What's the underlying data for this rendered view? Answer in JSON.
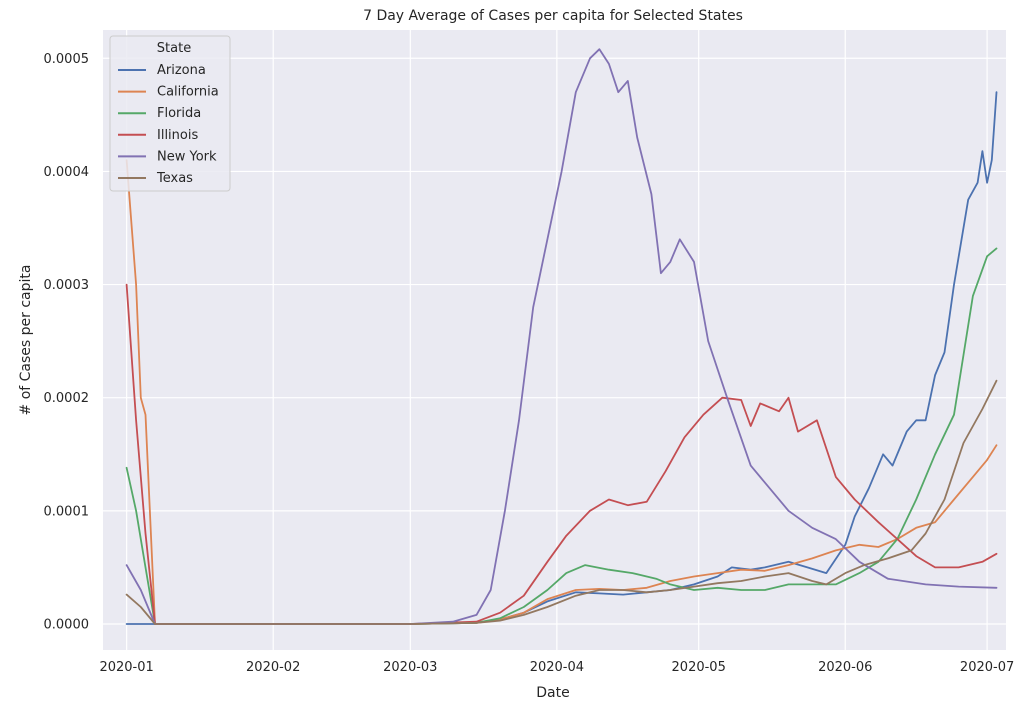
{
  "chart_data": {
    "type": "line",
    "title": "7 Day Average of Cases per capita for Selected States",
    "xlabel": "Date",
    "ylabel": "# of Cases per capita",
    "xlim": [
      "2019-12-27",
      "2020-07-05"
    ],
    "ylim": [
      -2.3e-05,
      0.000525
    ],
    "grid": true,
    "legend": {
      "title": "State",
      "position": "top-left"
    },
    "x_ticks": [
      "2020-01",
      "2020-02",
      "2020-03",
      "2020-04",
      "2020-05",
      "2020-06",
      "2020-07"
    ],
    "y_ticks": [
      0.0,
      0.0001,
      0.0002,
      0.0003,
      0.0004,
      0.0005
    ],
    "y_tick_labels": [
      "0.0000",
      "0.0001",
      "0.0002",
      "0.0003",
      "0.0004",
      "0.0005"
    ],
    "series": [
      {
        "name": "Arizona",
        "color": "#4c72b0",
        "points": [
          [
            "2020-01-01",
            0.0
          ],
          [
            "2020-01-07",
            0.0
          ],
          [
            "2020-03-01",
            0.0
          ],
          [
            "2020-03-15",
            1e-06
          ],
          [
            "2020-03-20",
            4e-06
          ],
          [
            "2020-03-25",
            1e-05
          ],
          [
            "2020-03-30",
            2e-05
          ],
          [
            "2020-04-05",
            2.8e-05
          ],
          [
            "2020-04-10",
            2.7e-05
          ],
          [
            "2020-04-15",
            2.6e-05
          ],
          [
            "2020-04-20",
            2.8e-05
          ],
          [
            "2020-04-25",
            3e-05
          ],
          [
            "2020-04-30",
            3.5e-05
          ],
          [
            "2020-05-05",
            4.2e-05
          ],
          [
            "2020-05-08",
            5e-05
          ],
          [
            "2020-05-12",
            4.8e-05
          ],
          [
            "2020-05-15",
            5e-05
          ],
          [
            "2020-05-20",
            5.5e-05
          ],
          [
            "2020-05-24",
            5e-05
          ],
          [
            "2020-05-28",
            4.5e-05
          ],
          [
            "2020-06-01",
            7e-05
          ],
          [
            "2020-06-03",
            9.5e-05
          ],
          [
            "2020-06-06",
            0.00012
          ],
          [
            "2020-06-09",
            0.00015
          ],
          [
            "2020-06-11",
            0.00014
          ],
          [
            "2020-06-14",
            0.00017
          ],
          [
            "2020-06-16",
            0.00018
          ],
          [
            "2020-06-18",
            0.00018
          ],
          [
            "2020-06-20",
            0.00022
          ],
          [
            "2020-06-22",
            0.00024
          ],
          [
            "2020-06-24",
            0.0003
          ],
          [
            "2020-06-27",
            0.000375
          ],
          [
            "2020-06-29",
            0.00039
          ],
          [
            "2020-06-30",
            0.000418
          ],
          [
            "2020-07-01",
            0.00039
          ],
          [
            "2020-07-02",
            0.00041
          ],
          [
            "2020-07-03",
            0.00047
          ]
        ]
      },
      {
        "name": "California",
        "color": "#dd8452",
        "points": [
          [
            "2020-01-01",
            0.00041
          ],
          [
            "2020-01-03",
            0.0003
          ],
          [
            "2020-01-04",
            0.0002
          ],
          [
            "2020-01-05",
            0.000185
          ],
          [
            "2020-01-07",
            0.0
          ],
          [
            "2020-03-01",
            0.0
          ],
          [
            "2020-03-15",
            1e-06
          ],
          [
            "2020-03-20",
            4e-06
          ],
          [
            "2020-03-25",
            1e-05
          ],
          [
            "2020-03-30",
            2.2e-05
          ],
          [
            "2020-04-05",
            3e-05
          ],
          [
            "2020-04-10",
            3.1e-05
          ],
          [
            "2020-04-15",
            3e-05
          ],
          [
            "2020-04-20",
            3.2e-05
          ],
          [
            "2020-04-25",
            3.8e-05
          ],
          [
            "2020-04-30",
            4.2e-05
          ],
          [
            "2020-05-05",
            4.5e-05
          ],
          [
            "2020-05-10",
            4.8e-05
          ],
          [
            "2020-05-15",
            4.7e-05
          ],
          [
            "2020-05-20",
            5.2e-05
          ],
          [
            "2020-05-25",
            5.8e-05
          ],
          [
            "2020-05-30",
            6.5e-05
          ],
          [
            "2020-06-04",
            7e-05
          ],
          [
            "2020-06-08",
            6.8e-05
          ],
          [
            "2020-06-12",
            7.5e-05
          ],
          [
            "2020-06-16",
            8.5e-05
          ],
          [
            "2020-06-20",
            9e-05
          ],
          [
            "2020-06-24",
            0.00011
          ],
          [
            "2020-06-28",
            0.00013
          ],
          [
            "2020-07-01",
            0.000145
          ],
          [
            "2020-07-03",
            0.000158
          ]
        ]
      },
      {
        "name": "Florida",
        "color": "#55a868",
        "points": [
          [
            "2020-01-01",
            0.000138
          ],
          [
            "2020-01-03",
            0.0001
          ],
          [
            "2020-01-05",
            5e-05
          ],
          [
            "2020-01-07",
            0.0
          ],
          [
            "2020-03-01",
            0.0
          ],
          [
            "2020-03-15",
            1e-06
          ],
          [
            "2020-03-20",
            5e-06
          ],
          [
            "2020-03-25",
            1.5e-05
          ],
          [
            "2020-03-30",
            3e-05
          ],
          [
            "2020-04-03",
            4.5e-05
          ],
          [
            "2020-04-07",
            5.2e-05
          ],
          [
            "2020-04-12",
            4.8e-05
          ],
          [
            "2020-04-17",
            4.5e-05
          ],
          [
            "2020-04-22",
            4e-05
          ],
          [
            "2020-04-25",
            3.5e-05
          ],
          [
            "2020-04-30",
            3e-05
          ],
          [
            "2020-05-05",
            3.2e-05
          ],
          [
            "2020-05-10",
            3e-05
          ],
          [
            "2020-05-15",
            3e-05
          ],
          [
            "2020-05-20",
            3.5e-05
          ],
          [
            "2020-05-25",
            3.5e-05
          ],
          [
            "2020-05-30",
            3.5e-05
          ],
          [
            "2020-06-04",
            4.5e-05
          ],
          [
            "2020-06-08",
            5.5e-05
          ],
          [
            "2020-06-12",
            7.5e-05
          ],
          [
            "2020-06-16",
            0.00011
          ],
          [
            "2020-06-20",
            0.00015
          ],
          [
            "2020-06-24",
            0.000185
          ],
          [
            "2020-06-28",
            0.00029
          ],
          [
            "2020-07-01",
            0.000325
          ],
          [
            "2020-07-03",
            0.000332
          ]
        ]
      },
      {
        "name": "Illinois",
        "color": "#c44e52",
        "points": [
          [
            "2020-01-01",
            0.0003
          ],
          [
            "2020-01-03",
            0.00018
          ],
          [
            "2020-01-05",
            8e-05
          ],
          [
            "2020-01-07",
            0.0
          ],
          [
            "2020-03-01",
            0.0
          ],
          [
            "2020-03-15",
            2e-06
          ],
          [
            "2020-03-20",
            1e-05
          ],
          [
            "2020-03-25",
            2.5e-05
          ],
          [
            "2020-03-30",
            5.5e-05
          ],
          [
            "2020-04-03",
            7.8e-05
          ],
          [
            "2020-04-08",
            0.0001
          ],
          [
            "2020-04-12",
            0.00011
          ],
          [
            "2020-04-16",
            0.000105
          ],
          [
            "2020-04-20",
            0.000108
          ],
          [
            "2020-04-24",
            0.000135
          ],
          [
            "2020-04-28",
            0.000165
          ],
          [
            "2020-05-02",
            0.000185
          ],
          [
            "2020-05-06",
            0.0002
          ],
          [
            "2020-05-10",
            0.000198
          ],
          [
            "2020-05-12",
            0.000175
          ],
          [
            "2020-05-14",
            0.000195
          ],
          [
            "2020-05-18",
            0.000188
          ],
          [
            "2020-05-20",
            0.0002
          ],
          [
            "2020-05-22",
            0.00017
          ],
          [
            "2020-05-26",
            0.00018
          ],
          [
            "2020-05-30",
            0.00013
          ],
          [
            "2020-06-03",
            0.00011
          ],
          [
            "2020-06-08",
            9e-05
          ],
          [
            "2020-06-12",
            7.5e-05
          ],
          [
            "2020-06-16",
            6e-05
          ],
          [
            "2020-06-20",
            5e-05
          ],
          [
            "2020-06-25",
            5e-05
          ],
          [
            "2020-06-30",
            5.5e-05
          ],
          [
            "2020-07-03",
            6.2e-05
          ]
        ]
      },
      {
        "name": "New York",
        "color": "#8172b3",
        "points": [
          [
            "2020-01-01",
            5.2e-05
          ],
          [
            "2020-01-04",
            3e-05
          ],
          [
            "2020-01-07",
            0.0
          ],
          [
            "2020-03-01",
            0.0
          ],
          [
            "2020-03-10",
            2e-06
          ],
          [
            "2020-03-15",
            8e-06
          ],
          [
            "2020-03-18",
            3e-05
          ],
          [
            "2020-03-21",
            0.0001
          ],
          [
            "2020-03-24",
            0.00018
          ],
          [
            "2020-03-27",
            0.00028
          ],
          [
            "2020-03-30",
            0.00034
          ],
          [
            "2020-04-02",
            0.0004
          ],
          [
            "2020-04-05",
            0.00047
          ],
          [
            "2020-04-08",
            0.0005
          ],
          [
            "2020-04-10",
            0.000508
          ],
          [
            "2020-04-12",
            0.000495
          ],
          [
            "2020-04-14",
            0.00047
          ],
          [
            "2020-04-16",
            0.00048
          ],
          [
            "2020-04-18",
            0.00043
          ],
          [
            "2020-04-21",
            0.00038
          ],
          [
            "2020-04-23",
            0.00031
          ],
          [
            "2020-04-25",
            0.00032
          ],
          [
            "2020-04-27",
            0.00034
          ],
          [
            "2020-04-30",
            0.00032
          ],
          [
            "2020-05-03",
            0.00025
          ],
          [
            "2020-05-07",
            0.0002
          ],
          [
            "2020-05-12",
            0.00014
          ],
          [
            "2020-05-16",
            0.00012
          ],
          [
            "2020-05-20",
            0.0001
          ],
          [
            "2020-05-25",
            8.5e-05
          ],
          [
            "2020-05-30",
            7.5e-05
          ],
          [
            "2020-06-04",
            5.5e-05
          ],
          [
            "2020-06-10",
            4e-05
          ],
          [
            "2020-06-18",
            3.5e-05
          ],
          [
            "2020-06-25",
            3.3e-05
          ],
          [
            "2020-07-03",
            3.2e-05
          ]
        ]
      },
      {
        "name": "Texas",
        "color": "#937860",
        "points": [
          [
            "2020-01-01",
            2.6e-05
          ],
          [
            "2020-01-04",
            1.5e-05
          ],
          [
            "2020-01-07",
            0.0
          ],
          [
            "2020-03-01",
            0.0
          ],
          [
            "2020-03-15",
            1e-06
          ],
          [
            "2020-03-20",
            3e-06
          ],
          [
            "2020-03-25",
            8e-06
          ],
          [
            "2020-03-30",
            1.5e-05
          ],
          [
            "2020-04-05",
            2.5e-05
          ],
          [
            "2020-04-10",
            3e-05
          ],
          [
            "2020-04-15",
            3e-05
          ],
          [
            "2020-04-20",
            2.8e-05
          ],
          [
            "2020-04-25",
            3e-05
          ],
          [
            "2020-04-30",
            3.3e-05
          ],
          [
            "2020-05-05",
            3.6e-05
          ],
          [
            "2020-05-10",
            3.8e-05
          ],
          [
            "2020-05-15",
            4.2e-05
          ],
          [
            "2020-05-20",
            4.5e-05
          ],
          [
            "2020-05-25",
            3.8e-05
          ],
          [
            "2020-05-28",
            3.5e-05
          ],
          [
            "2020-06-01",
            4.5e-05
          ],
          [
            "2020-06-05",
            5.2e-05
          ],
          [
            "2020-06-10",
            5.8e-05
          ],
          [
            "2020-06-15",
            6.5e-05
          ],
          [
            "2020-06-18",
            8e-05
          ],
          [
            "2020-06-22",
            0.00011
          ],
          [
            "2020-06-26",
            0.00016
          ],
          [
            "2020-06-30",
            0.00019
          ],
          [
            "2020-07-03",
            0.000215
          ]
        ]
      }
    ]
  }
}
